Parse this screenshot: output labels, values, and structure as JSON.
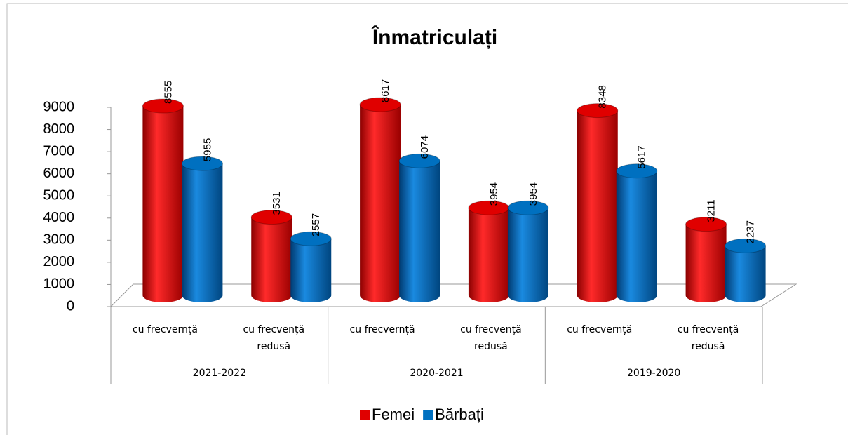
{
  "chart_data": {
    "type": "cylinder_bar",
    "title": "Înmatriculați",
    "categories": [
      "cu frecvernță",
      "cu frecvență redusă",
      "cu frecvernță",
      "cu frecvență redusă",
      "cu frecvernță",
      "cu frecvență redusă"
    ],
    "groups": [
      "2021-2022",
      "2020-2021",
      "2019-2020"
    ],
    "series": [
      {
        "name": "Femei",
        "color": "#e00000",
        "values": [
          8555,
          3531,
          8617,
          3954,
          8348,
          3211
        ]
      },
      {
        "name": "Bărbați",
        "color": "#0070c0",
        "values": [
          5955,
          2557,
          6074,
          3954,
          5617,
          2237
        ]
      }
    ],
    "ylim": [
      0,
      9000
    ],
    "yticks": [
      0,
      1000,
      2000,
      3000,
      4000,
      5000,
      6000,
      7000,
      8000,
      9000
    ],
    "legend": "bottom"
  }
}
